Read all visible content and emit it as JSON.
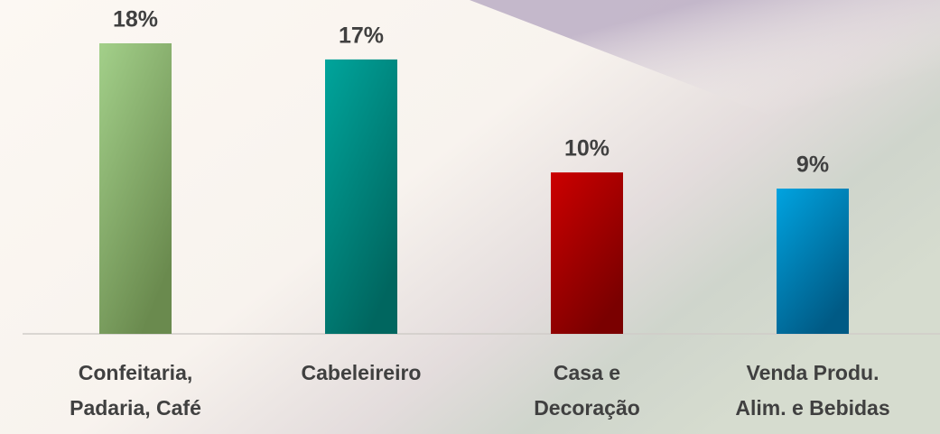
{
  "chart_data": {
    "type": "bar",
    "categories": [
      "Confeitaria,\nPadaria, Café",
      "Cabeleireiro",
      "Casa e\nDecoração",
      "Venda Produ.\nAlim. e Bebidas"
    ],
    "values": [
      18,
      17,
      10,
      9
    ],
    "value_labels": [
      "18%",
      "17%",
      "10%",
      "9%"
    ],
    "colors": [
      [
        "#a3d08a",
        "#6a8a4e"
      ],
      [
        "#00a59c",
        "#00665f"
      ],
      [
        "#cc0000",
        "#7a0000"
      ],
      [
        "#00a3e0",
        "#005a85"
      ]
    ]
  }
}
